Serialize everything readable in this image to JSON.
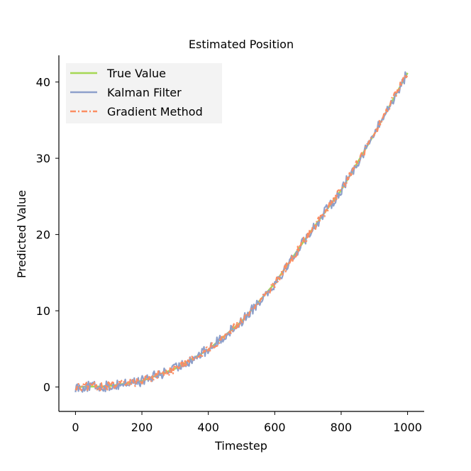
{
  "chart_data": {
    "type": "line",
    "title": "Estimated Position",
    "xlabel": "Timestep",
    "ylabel": "Predicted Value",
    "xlim": [
      -50,
      1050
    ],
    "ylim": [
      -3.2,
      43.5
    ],
    "xticks": [
      0,
      200,
      400,
      600,
      800,
      1000
    ],
    "yticks": [
      0,
      10,
      20,
      30,
      40
    ],
    "xtick_labels": [
      "0",
      "200",
      "400",
      "600",
      "800",
      "1000"
    ],
    "ytick_labels": [
      "0",
      "10",
      "20",
      "30",
      "40"
    ],
    "grid": false,
    "legend_position": "upper-left",
    "series": [
      {
        "name": "True Value",
        "color": "#a6d854",
        "style": "solid",
        "x": [
          0,
          100,
          200,
          300,
          400,
          500,
          600,
          700,
          800,
          900,
          1000
        ],
        "values": [
          0,
          0.1,
          0.8,
          2.4,
          4.9,
          8.6,
          13.6,
          19.9,
          25.8,
          33.2,
          41.2
        ]
      },
      {
        "name": "Kalman Filter",
        "color": "#8da0cb",
        "style": "solid",
        "noise": 0.7,
        "x": [
          0,
          100,
          200,
          300,
          400,
          500,
          600,
          700,
          800,
          900,
          1000
        ],
        "values": [
          0,
          0.1,
          0.8,
          2.4,
          4.9,
          8.6,
          13.6,
          19.9,
          25.8,
          33.2,
          41.2
        ]
      },
      {
        "name": "Gradient Method",
        "color": "#fc8d62",
        "style": "dashdot",
        "noise": 0.55,
        "x": [
          0,
          100,
          200,
          300,
          400,
          500,
          600,
          700,
          800,
          900,
          1000
        ],
        "values": [
          0,
          0.1,
          0.8,
          2.4,
          4.9,
          8.6,
          13.6,
          19.9,
          25.8,
          33.2,
          41.2
        ]
      }
    ]
  }
}
